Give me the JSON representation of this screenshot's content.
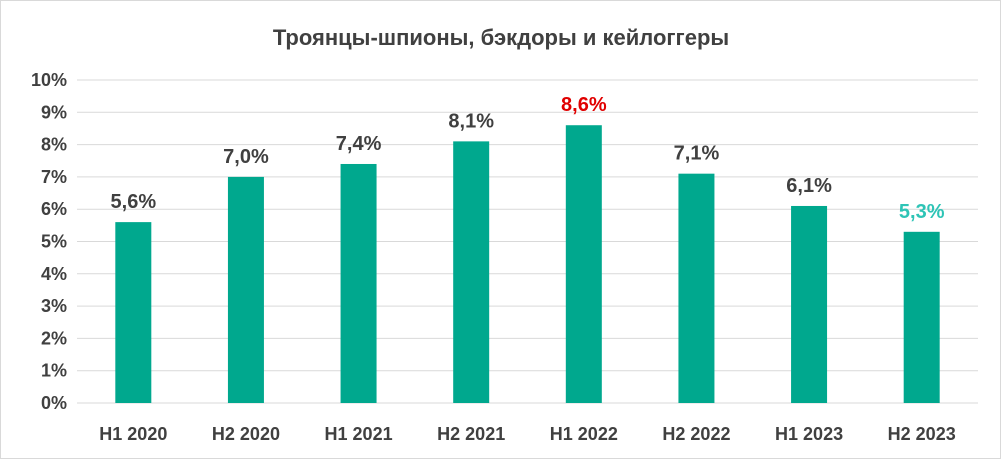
{
  "chart_data": {
    "type": "bar",
    "title": "Троянцы-шпионы, бэкдоры и кейлоггеры",
    "xlabel": "",
    "ylabel": "",
    "categories": [
      "H1 2020",
      "H2 2020",
      "H1 2021",
      "H2 2021",
      "H1 2022",
      "H2 2022",
      "H1 2023",
      "H2 2023"
    ],
    "values": [
      5.6,
      7.0,
      7.4,
      8.1,
      8.6,
      7.1,
      6.1,
      5.3
    ],
    "value_labels": [
      "5,6%",
      "7,0%",
      "7,4%",
      "8,1%",
      "8,6%",
      "7,1%",
      "6,1%",
      "5,3%"
    ],
    "ylim": [
      0,
      10
    ],
    "yticks": [
      "0%",
      "1%",
      "2%",
      "3%",
      "4%",
      "5%",
      "6%",
      "7%",
      "8%",
      "9%",
      "10%"
    ],
    "grid": true,
    "legend": "none",
    "colors": {
      "bar": "#00a88e",
      "label_default": "#404040",
      "label_max": "#e00000",
      "label_last": "#2ec4b6",
      "grid": "#d9d9d9"
    }
  }
}
